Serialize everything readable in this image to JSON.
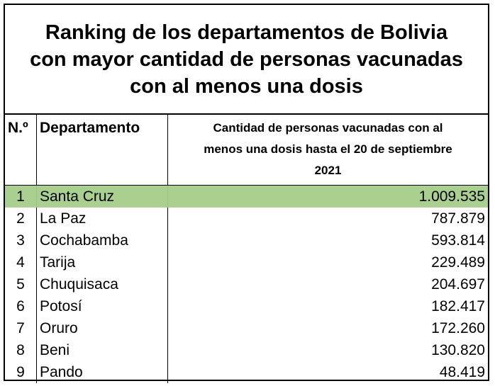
{
  "title": {
    "line1": "Ranking de los departamentos de Bolivia",
    "line2": "con mayor cantidad de personas vacunadas",
    "line3": "con al menos una dosis"
  },
  "header": {
    "number": "N.º",
    "department": "Departamento",
    "amount_line1": "Cantidad de personas vacunadas con al",
    "amount_line2": "menos una dosis hasta el 20 de septiembre",
    "amount_line3": "2021"
  },
  "colors": {
    "highlight_row": "#a9d08e",
    "border": "#000000"
  },
  "chart_data": {
    "type": "table",
    "title": "Ranking de los departamentos de Bolivia con mayor cantidad de personas vacunadas con al menos una dosis",
    "columns": [
      "N.º",
      "Departamento",
      "Cantidad de personas vacunadas con al menos una dosis hasta el 20 de septiembre 2021"
    ],
    "highlighted_row": 1,
    "rows": [
      {
        "rank": "1",
        "department": "Santa Cruz",
        "value_label": "1.009.535",
        "value": 1009535
      },
      {
        "rank": "2",
        "department": "La Paz",
        "value_label": "787.879",
        "value": 787879
      },
      {
        "rank": "3",
        "department": "Cochabamba",
        "value_label": "593.814",
        "value": 593814
      },
      {
        "rank": "4",
        "department": "Tarija",
        "value_label": "229.489",
        "value": 229489
      },
      {
        "rank": "5",
        "department": "Chuquisaca",
        "value_label": "204.697",
        "value": 204697
      },
      {
        "rank": "6",
        "department": "Potosí",
        "value_label": "182.417",
        "value": 182417
      },
      {
        "rank": "7",
        "department": "Oruro",
        "value_label": "172.260",
        "value": 172260
      },
      {
        "rank": "8",
        "department": "Beni",
        "value_label": "130.820",
        "value": 130820
      },
      {
        "rank": "9",
        "department": "Pando",
        "value_label": "48.419",
        "value": 48419
      }
    ]
  }
}
